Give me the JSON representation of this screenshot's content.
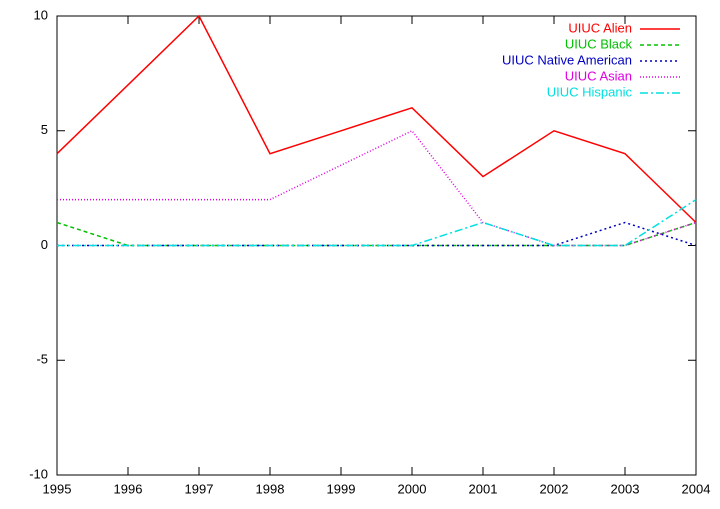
{
  "chart_data": {
    "type": "line",
    "x": [
      1995,
      1996,
      1997,
      1998,
      1999,
      2000,
      2001,
      2002,
      2003,
      2004
    ],
    "xlim": [
      1995,
      2004
    ],
    "xticks": [
      1995,
      1996,
      1997,
      1998,
      1999,
      2000,
      2001,
      2002,
      2003,
      2004
    ],
    "ylim": [
      -10,
      10
    ],
    "yticks": [
      -10,
      -5,
      0,
      5,
      10
    ],
    "grid": false,
    "legend": "top-right",
    "series": [
      {
        "name": "UIUC Alien",
        "color": "#ff0000",
        "values": [
          4,
          7,
          10,
          4,
          5,
          6,
          3,
          5,
          4,
          1
        ]
      },
      {
        "name": "UIUC Black",
        "color": "#00c000",
        "values": [
          1,
          0,
          0,
          0,
          0,
          0,
          0,
          0,
          0,
          1
        ]
      },
      {
        "name": "UIUC Native American",
        "color": "#0000c0",
        "values": [
          0,
          0,
          0,
          0,
          0,
          0,
          0,
          0,
          1,
          0
        ]
      },
      {
        "name": "UIUC Asian",
        "color": "#e000e0",
        "values": [
          2,
          2,
          2,
          2,
          3.5,
          5,
          1,
          0,
          0,
          1
        ]
      },
      {
        "name": "UIUC Hispanic",
        "color": "#00e0e0",
        "values": [
          0,
          0,
          0,
          0,
          0,
          0,
          1,
          0,
          0,
          2
        ]
      }
    ]
  }
}
